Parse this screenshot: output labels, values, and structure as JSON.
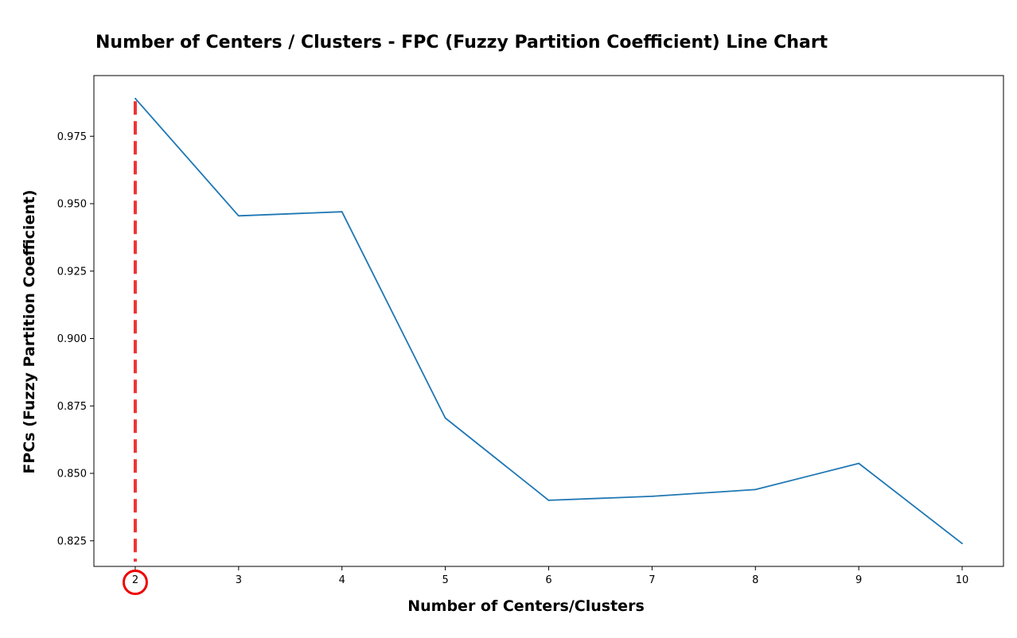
{
  "chart_data": {
    "type": "line",
    "title": "Number of Centers / Clusters - FPC (Fuzzy Partition Coefficient) Line Chart",
    "xlabel": "Number of Centers/Clusters",
    "ylabel": "FPCs (Fuzzy Partition Coefficient)",
    "x": [
      2,
      3,
      4,
      5,
      6,
      7,
      8,
      9,
      10
    ],
    "series": [
      {
        "values": [
          0.989,
          0.9455,
          0.947,
          0.8705,
          0.84,
          0.8415,
          0.844,
          0.8537,
          0.824
        ],
        "color": "#1f77b4"
      }
    ],
    "xticks": [
      "2",
      "3",
      "4",
      "5",
      "6",
      "7",
      "8",
      "9",
      "10"
    ],
    "yticks": [
      "0.825",
      "0.850",
      "0.875",
      "0.900",
      "0.925",
      "0.950",
      "0.975"
    ],
    "ytick_values": [
      0.825,
      0.85,
      0.875,
      0.9,
      0.925,
      0.95,
      0.975
    ],
    "xlim": [
      1.6,
      10.4
    ],
    "ylim": [
      0.8155,
      0.9975
    ],
    "grid": false,
    "legend": "none",
    "annotations": [
      {
        "type": "vertical-dashed-line",
        "x": 2,
        "y_top": 0.988,
        "color": "#ee3333"
      },
      {
        "type": "circle-highlight",
        "target_tick": "2",
        "color": "#ee0000"
      }
    ]
  }
}
